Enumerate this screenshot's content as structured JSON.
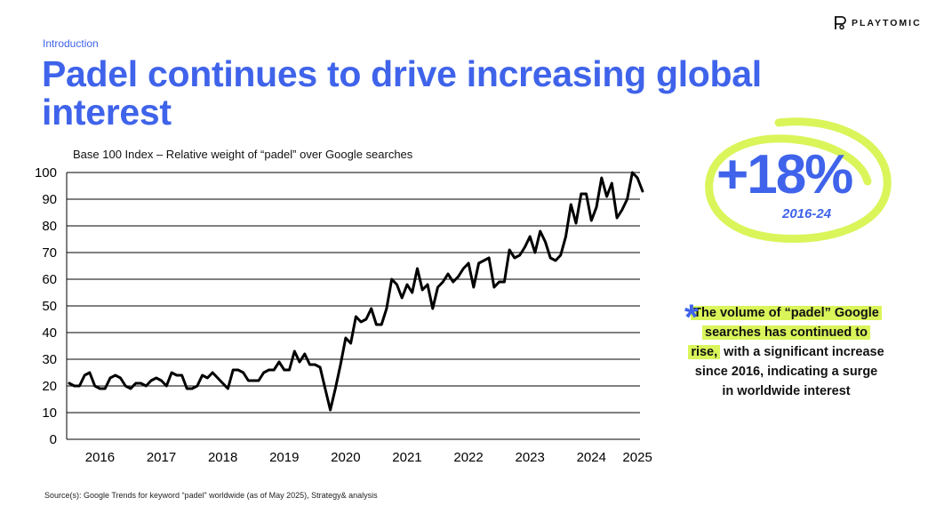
{
  "header": {
    "section": "Introduction",
    "title": "Padel continues to drive increasing global interest",
    "logo_text": "PLAYTOMIC"
  },
  "chart_data": {
    "type": "line",
    "title": "Base 100 Index – Relative weight of “padel” over Google searches",
    "xlabel": "",
    "ylabel": "",
    "ylim": [
      0,
      100
    ],
    "yticks": [
      0,
      10,
      20,
      30,
      40,
      50,
      60,
      70,
      80,
      90,
      100
    ],
    "grid": true,
    "xticks": [
      {
        "label": "2016",
        "t": 1
      },
      {
        "label": "2017",
        "t": 13
      },
      {
        "label": "2018",
        "t": 25
      },
      {
        "label": "2019",
        "t": 37
      },
      {
        "label": "2020",
        "t": 49
      },
      {
        "label": "2021",
        "t": 61
      },
      {
        "label": "2022",
        "t": 73
      },
      {
        "label": "2023",
        "t": 85
      },
      {
        "label": "2024",
        "t": 97
      },
      {
        "label": "2025",
        "t": 106
      }
    ],
    "x_range": [
      -5.5,
      106.5
    ],
    "series": [
      {
        "name": "padel",
        "x_start": -5,
        "values": [
          21,
          20,
          20,
          24,
          25,
          20,
          19,
          19,
          23,
          24,
          23,
          20,
          19,
          21,
          21,
          20,
          22,
          23,
          22,
          20,
          25,
          24,
          24,
          19,
          19,
          20,
          24,
          23,
          25,
          23,
          21,
          19,
          26,
          26,
          25,
          22,
          22,
          22,
          25,
          26,
          26,
          29,
          26,
          26,
          33,
          29,
          32,
          28,
          28,
          27,
          19,
          11,
          19,
          28,
          38,
          36,
          46,
          44,
          45,
          49,
          43,
          43,
          49,
          60,
          58,
          53,
          58,
          55,
          64,
          56,
          58,
          49,
          57,
          59,
          62,
          59,
          61,
          64,
          66,
          57,
          66,
          67,
          68,
          57,
          59,
          59,
          71,
          68,
          69,
          72,
          76,
          70,
          78,
          74,
          68,
          67,
          69,
          76,
          88,
          81,
          92,
          92,
          82,
          87,
          98,
          91,
          96,
          83,
          86,
          90,
          100,
          98,
          93
        ]
      }
    ]
  },
  "stat": {
    "value": "+18%",
    "period": "2016-24"
  },
  "note": {
    "highlight_1": "The volume of “padel” Google searches has continued to rise,",
    "text": " with a significant increase since 2016, indicating a surge in worldwide interest"
  },
  "footer": {
    "source": "Source(s): Google Trends for keyword “padel” worldwide (as of May 2025), Strategy& analysis"
  },
  "colors": {
    "accent": "#3f63ea",
    "highlight": "#d9f55a",
    "line": "#000000"
  }
}
